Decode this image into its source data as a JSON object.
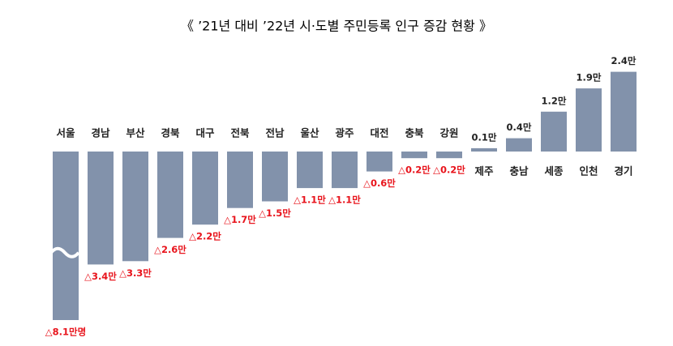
{
  "chart_data": {
    "type": "bar",
    "title": "《 ’21년 대비 ’22년 시·도별 주민등록 인구 증감 현황 》",
    "categories": [
      "서울",
      "경남",
      "부산",
      "경북",
      "대구",
      "전북",
      "전남",
      "울산",
      "광주",
      "대전",
      "충북",
      "강원",
      "제주",
      "충남",
      "세종",
      "인천",
      "경기"
    ],
    "values": [
      -8.1,
      -3.4,
      -3.3,
      -2.6,
      -2.2,
      -1.7,
      -1.5,
      -1.1,
      -1.1,
      -0.6,
      -0.2,
      -0.2,
      0.1,
      0.4,
      1.2,
      1.9,
      2.4
    ],
    "value_labels": [
      "△8.1만명",
      "△3.4만",
      "△3.3만",
      "△2.6만",
      "△2.2만",
      "△1.7만",
      "△1.5만",
      "△1.1만",
      "△1.1만",
      "△0.6만",
      "△0.2만",
      "△0.2만",
      "0.1만",
      "0.4만",
      "1.2만",
      "1.9만",
      "2.4만"
    ],
    "color": "#8292ab",
    "negative_label_color": "#e8141c"
  }
}
